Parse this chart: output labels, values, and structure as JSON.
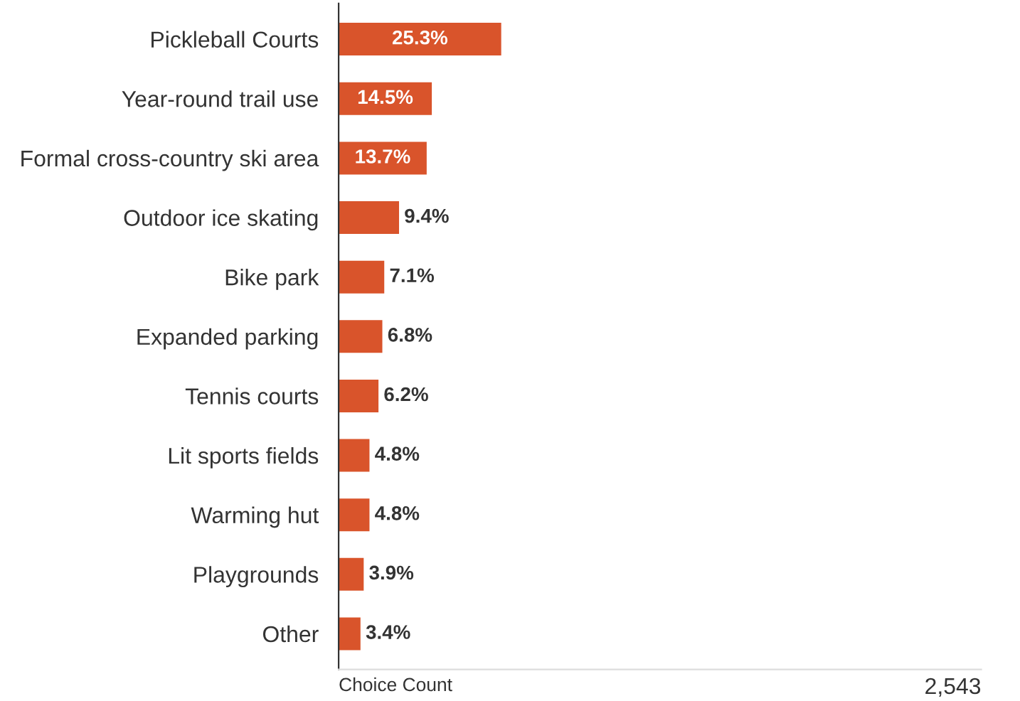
{
  "chart_data": {
    "type": "bar",
    "orientation": "horizontal",
    "annotations": [
      "Choice Count",
      "2,543"
    ],
    "categories": [
      "Pickleball Courts",
      "Year-round trail use",
      "Formal cross-country ski area",
      "Outdoor ice skating",
      "Bike park",
      "Expanded parking",
      "Tennis courts",
      "Lit sports fields",
      "Warming hut",
      "Playgrounds",
      "Other"
    ],
    "values": [
      25.3,
      14.5,
      13.7,
      9.4,
      7.1,
      6.8,
      6.2,
      4.8,
      4.8,
      3.9,
      3.4
    ],
    "value_labels": [
      "25.3%",
      "14.5%",
      "13.7%",
      "9.4%",
      "7.1%",
      "6.8%",
      "6.2%",
      "4.8%",
      "4.8%",
      "3.9%",
      "3.4%"
    ],
    "color": "#d9542b",
    "xlim": [
      0,
      100
    ],
    "grid": false,
    "legend": false
  }
}
